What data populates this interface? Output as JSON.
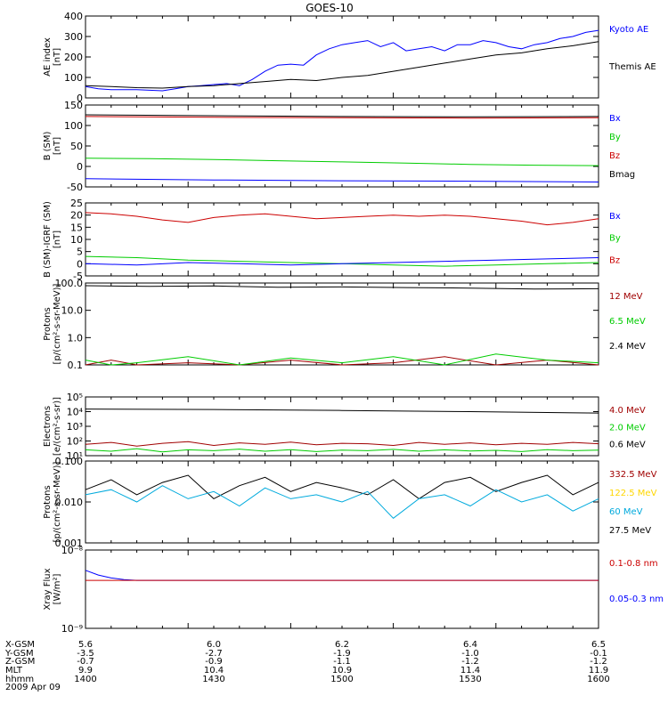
{
  "title": "GOES-10",
  "date": "2009 Apr 09",
  "colors": {
    "black": "#000000",
    "blue": "#0000ff",
    "red": "#cc0000",
    "darkred": "#a00000",
    "green": "#00cc00",
    "yellow": "#ffd700",
    "cyan": "#00aadd"
  },
  "panels": [
    {
      "ylabel": [
        "AE index",
        "[nT]"
      ],
      "scale": "linear",
      "ylim": [
        0,
        400
      ],
      "ticks": [
        "400",
        "300",
        "200",
        "100",
        "0"
      ],
      "tick_values": [
        400,
        300,
        200,
        100,
        0
      ],
      "legend": [
        {
          "label": "Kyoto AE",
          "color": "#0000ff"
        },
        {
          "label": "Themis AE",
          "color": "#000000"
        }
      ]
    },
    {
      "ylabel": [
        "B (SM)",
        "[nT]"
      ],
      "scale": "linear",
      "ylim": [
        -50,
        150
      ],
      "ticks": [
        "150",
        "100",
        "50",
        "0",
        "-50"
      ],
      "tick_values": [
        150,
        100,
        50,
        0,
        -50
      ],
      "legend": [
        {
          "label": "Bx",
          "color": "#0000ff"
        },
        {
          "label": "By",
          "color": "#00cc00"
        },
        {
          "label": "Bz",
          "color": "#cc0000"
        },
        {
          "label": "Bmag",
          "color": "#000000"
        }
      ]
    },
    {
      "ylabel": [
        "B (SM)-IGRF (SM)",
        "[nT]"
      ],
      "scale": "linear",
      "ylim": [
        -5,
        25
      ],
      "ticks": [
        "25",
        "20",
        "15",
        "10",
        "5",
        "0",
        "-5"
      ],
      "tick_values": [
        25,
        20,
        15,
        10,
        5,
        0,
        -5
      ],
      "legend": [
        {
          "label": "Bx",
          "color": "#0000ff"
        },
        {
          "label": "By",
          "color": "#00cc00"
        },
        {
          "label": "Bz",
          "color": "#cc0000"
        }
      ]
    },
    {
      "ylabel": [
        "Protons",
        "[p/(cm²-s-sr-MeV)]"
      ],
      "scale": "log",
      "ylim": [
        0.1,
        100
      ],
      "ticks": [
        "100.0",
        "10.0",
        "1.0",
        "0.1"
      ],
      "tick_values": [
        100,
        10,
        1,
        0.1
      ],
      "legend": [
        {
          "label": "12 MeV",
          "color": "#a00000"
        },
        {
          "label": "6.5 MeV",
          "color": "#00cc00"
        },
        {
          "label": "2.4 MeV",
          "color": "#000000"
        }
      ]
    },
    {
      "ylabel": [
        "Electrons",
        "[e/(cm²-s-sr)]"
      ],
      "scale": "log",
      "ylim": [
        10,
        100000
      ],
      "ticks": [
        "10⁵",
        "10⁴",
        "10³",
        "10²",
        "10¹"
      ],
      "tick_values": [
        100000,
        10000,
        1000,
        100,
        10
      ],
      "legend": [
        {
          "label": "4.0 MeV",
          "color": "#a00000"
        },
        {
          "label": "2.0 MeV",
          "color": "#00cc00"
        },
        {
          "label": "0.6 MeV",
          "color": "#000000"
        }
      ]
    },
    {
      "ylabel": [
        "Protons",
        "[p/(cm²-s-sr-MeV)]"
      ],
      "scale": "log",
      "ylim": [
        0.001,
        0.1
      ],
      "ticks": [
        "0.100",
        "0.010",
        "0.001"
      ],
      "tick_values": [
        0.1,
        0.01,
        0.001
      ],
      "legend": [
        {
          "label": "332.5 MeV",
          "color": "#a00000"
        },
        {
          "label": "122.5 MeV",
          "color": "#ffd700"
        },
        {
          "label": "60 MeV",
          "color": "#00aadd"
        },
        {
          "label": "27.5 MeV",
          "color": "#000000"
        }
      ]
    },
    {
      "ylabel": [
        "Xray Flux",
        "[W/m²]"
      ],
      "scale": "log",
      "ylim": [
        1e-09,
        1e-08
      ],
      "ticks": [
        "10⁻⁸",
        "10⁻⁹"
      ],
      "tick_values": [
        1e-08,
        1e-09
      ],
      "legend": [
        {
          "label": "0.1-0.8 nm",
          "color": "#cc0000"
        },
        {
          "label": "0.05-0.3 nm",
          "color": "#0000ff"
        }
      ]
    }
  ],
  "footer": {
    "row_labels": [
      "X-GSM",
      "Y-GSM",
      "Z-GSM",
      "MLT",
      "hhmm"
    ],
    "columns": [
      [
        "5.6",
        "-3.5",
        "-0.7",
        "9.9",
        "1400"
      ],
      [
        "6.0",
        "-2.7",
        "-0.9",
        "10.4",
        "1430"
      ],
      [
        "6.2",
        "-1.9",
        "-1.1",
        "10.9",
        "1500"
      ],
      [
        "6.4",
        "-1.0",
        "-1.2",
        "11.4",
        "1530"
      ],
      [
        "6.5",
        "-0.1",
        "-1.2",
        "11.9",
        "1600"
      ]
    ]
  },
  "chart_data": [
    {
      "type": "line",
      "xlabel": "hhmm",
      "xlim": [
        1400,
        1600
      ],
      "ylabel": "AE index [nT]",
      "ylim": [
        0,
        400
      ],
      "series": [
        {
          "name": "Kyoto AE",
          "x": [
            1400,
            1405,
            1410,
            1420,
            1430,
            1435,
            1440,
            1445,
            1450,
            1455,
            1460,
            1465,
            1470,
            1475,
            1480,
            1485,
            1490,
            1495,
            1500,
            1505,
            1510,
            1515,
            1520,
            1525,
            1530,
            1535,
            1540,
            1545,
            1550,
            1555,
            1560,
            1565,
            1570,
            1575,
            1580,
            1585,
            1590,
            1595,
            1600
          ],
          "values": [
            55,
            45,
            40,
            40,
            35,
            45,
            55,
            60,
            65,
            70,
            60,
            90,
            130,
            160,
            165,
            160,
            210,
            240,
            260,
            270,
            280,
            250,
            270,
            230,
            240,
            250,
            230,
            260,
            260,
            280,
            270,
            250,
            240,
            260,
            270,
            290,
            300,
            320,
            330
          ]
        },
        {
          "name": "Themis AE",
          "x": [
            1400,
            1410,
            1420,
            1430,
            1440,
            1450,
            1460,
            1470,
            1480,
            1490,
            1500,
            1510,
            1520,
            1530,
            1540,
            1550,
            1560,
            1570,
            1580,
            1590,
            1600
          ],
          "values": [
            60,
            55,
            50,
            48,
            55,
            60,
            70,
            80,
            90,
            85,
            100,
            110,
            130,
            150,
            170,
            190,
            210,
            220,
            240,
            255,
            275
          ]
        }
      ]
    },
    {
      "type": "line",
      "xlabel": "hhmm",
      "xlim": [
        1400,
        1600
      ],
      "ylabel": "B (SM) [nT]",
      "ylim": [
        -50,
        150
      ],
      "series": [
        {
          "name": "Bz",
          "x": [
            1400,
            1450,
            1500,
            1550,
            1600
          ],
          "values": [
            122,
            120,
            119,
            118,
            119
          ]
        },
        {
          "name": "Bmag",
          "x": [
            1400,
            1450,
            1500,
            1550,
            1600
          ],
          "values": [
            126,
            124,
            122,
            121,
            122
          ]
        },
        {
          "name": "By",
          "x": [
            1400,
            1425,
            1450,
            1475,
            1500,
            1525,
            1550,
            1575,
            1600
          ],
          "values": [
            20,
            19,
            17,
            14,
            11,
            8,
            5,
            3,
            2
          ]
        },
        {
          "name": "Bx",
          "x": [
            1400,
            1450,
            1500,
            1550,
            1600
          ],
          "values": [
            -30,
            -33,
            -35,
            -36,
            -38
          ]
        }
      ]
    },
    {
      "type": "line",
      "xlabel": "hhmm",
      "xlim": [
        1400,
        1600
      ],
      "ylabel": "B (SM)-IGRF (SM) [nT]",
      "ylim": [
        -5,
        25
      ],
      "series": [
        {
          "name": "Bz",
          "x": [
            1400,
            1410,
            1420,
            1430,
            1440,
            1450,
            1460,
            1470,
            1480,
            1490,
            1500,
            1510,
            1520,
            1530,
            1540,
            1550,
            1560,
            1570,
            1580,
            1590,
            1600
          ],
          "values": [
            21,
            20.5,
            19.5,
            18,
            17,
            19,
            20,
            20.5,
            19.5,
            18.5,
            19,
            19.5,
            20,
            19.5,
            20,
            19.5,
            18.5,
            17.5,
            16,
            17,
            18.5
          ]
        },
        {
          "name": "By",
          "x": [
            1400,
            1420,
            1440,
            1460,
            1480,
            1500,
            1520,
            1540,
            1560,
            1580,
            1600
          ],
          "values": [
            3,
            2.5,
            1.5,
            1,
            0.5,
            0,
            -0.5,
            -1,
            -0.5,
            0,
            0.5
          ]
        },
        {
          "name": "Bx",
          "x": [
            1400,
            1420,
            1440,
            1460,
            1480,
            1500,
            1520,
            1540,
            1560,
            1580,
            1600
          ],
          "values": [
            0,
            -0.5,
            0.5,
            0,
            -0.5,
            0,
            0.5,
            1,
            1.5,
            2,
            2.5
          ]
        }
      ]
    },
    {
      "type": "line",
      "xlabel": "hhmm",
      "xlim": [
        1400,
        1600
      ],
      "ylabel": "Protons [p/(cm²-s-sr-MeV)]",
      "ylim": [
        0.1,
        100
      ],
      "yscale": "log",
      "series": [
        {
          "name": "2.4 MeV",
          "x": [
            1400,
            1425,
            1450,
            1475,
            1500,
            1525,
            1550,
            1575,
            1600
          ],
          "values": [
            80,
            75,
            78,
            70,
            72,
            68,
            65,
            60,
            62
          ]
        },
        {
          "name": "12 MeV",
          "x": [
            1400,
            1410,
            1420,
            1440,
            1460,
            1480,
            1500,
            1520,
            1540,
            1560,
            1580,
            1600
          ],
          "values": [
            0.1,
            0.15,
            0.1,
            0.12,
            0.1,
            0.15,
            0.1,
            0.12,
            0.2,
            0.1,
            0.15,
            0.1
          ]
        },
        {
          "name": "6.5 MeV",
          "x": [
            1400,
            1410,
            1420,
            1440,
            1460,
            1480,
            1500,
            1520,
            1540,
            1560,
            1580,
            1600
          ],
          "values": [
            0.15,
            0.1,
            0.12,
            0.2,
            0.1,
            0.18,
            0.12,
            0.2,
            0.1,
            0.25,
            0.15,
            0.12
          ]
        }
      ]
    },
    {
      "type": "line",
      "xlabel": "hhmm",
      "xlim": [
        1400,
        1600
      ],
      "ylabel": "Electrons [e/(cm²-s-sr)]",
      "ylim": [
        10,
        100000
      ],
      "yscale": "log",
      "series": [
        {
          "name": "0.6 MeV",
          "x": [
            1400,
            1450,
            1500,
            1550,
            1600
          ],
          "values": [
            15000,
            14000,
            12000,
            10000,
            8000
          ]
        },
        {
          "name": "4.0 MeV",
          "x": [
            1400,
            1410,
            1420,
            1430,
            1440,
            1450,
            1460,
            1470,
            1480,
            1490,
            1500,
            1510,
            1520,
            1530,
            1540,
            1550,
            1560,
            1570,
            1580,
            1590,
            1600
          ],
          "values": [
            60,
            80,
            45,
            70,
            90,
            50,
            75,
            60,
            85,
            55,
            70,
            65,
            50,
            80,
            60,
            75,
            55,
            70,
            60,
            80,
            65
          ]
        },
        {
          "name": "2.0 MeV",
          "x": [
            1400,
            1410,
            1420,
            1430,
            1440,
            1450,
            1460,
            1470,
            1480,
            1490,
            1500,
            1510,
            1520,
            1530,
            1540,
            1550,
            1560,
            1570,
            1580,
            1590,
            1600
          ],
          "values": [
            25,
            20,
            30,
            18,
            25,
            22,
            28,
            20,
            26,
            19,
            24,
            22,
            27,
            20,
            25,
            21,
            23,
            19,
            26,
            22,
            24
          ]
        }
      ]
    },
    {
      "type": "line",
      "xlabel": "hhmm",
      "xlim": [
        1400,
        1600
      ],
      "ylabel": "Protons [p/(cm²-s-sr-MeV)]",
      "ylim": [
        0.001,
        0.1
      ],
      "yscale": "log",
      "series": [
        {
          "name": "27.5 MeV",
          "x": [
            1400,
            1410,
            1420,
            1430,
            1440,
            1450,
            1460,
            1470,
            1480,
            1490,
            1500,
            1510,
            1520,
            1530,
            1540,
            1550,
            1560,
            1570,
            1580,
            1590,
            1600
          ],
          "values": [
            0.02,
            0.035,
            0.015,
            0.03,
            0.045,
            0.012,
            0.025,
            0.04,
            0.018,
            0.03,
            0.022,
            0.015,
            0.035,
            0.012,
            0.03,
            0.04,
            0.018,
            0.03,
            0.045,
            0.015,
            0.03
          ]
        },
        {
          "name": "60 MeV",
          "x": [
            1400,
            1410,
            1420,
            1430,
            1440,
            1450,
            1460,
            1470,
            1480,
            1490,
            1500,
            1510,
            1520,
            1530,
            1540,
            1550,
            1560,
            1570,
            1580,
            1590,
            1600
          ],
          "values": [
            0.015,
            0.02,
            0.01,
            0.025,
            0.012,
            0.018,
            0.008,
            0.022,
            0.012,
            0.015,
            0.01,
            0.018,
            0.004,
            0.012,
            0.015,
            0.008,
            0.02,
            0.01,
            0.015,
            0.006,
            0.012
          ]
        }
      ]
    },
    {
      "type": "line",
      "xlabel": "hhmm",
      "xlim": [
        1400,
        1600
      ],
      "ylabel": "Xray Flux [W/m²]",
      "ylim": [
        1e-09,
        1e-08
      ],
      "yscale": "log",
      "series": [
        {
          "name": "0.05-0.3 nm",
          "x": [
            1400,
            1405,
            1410,
            1415,
            1420,
            1600
          ],
          "values": [
            5.5e-09,
            4.8e-09,
            4.4e-09,
            4.2e-09,
            4.1e-09,
            4.1e-09
          ]
        },
        {
          "name": "0.1-0.8 nm",
          "x": [
            1400,
            1600
          ],
          "values": [
            4.1e-09,
            4.1e-09
          ]
        }
      ]
    }
  ]
}
